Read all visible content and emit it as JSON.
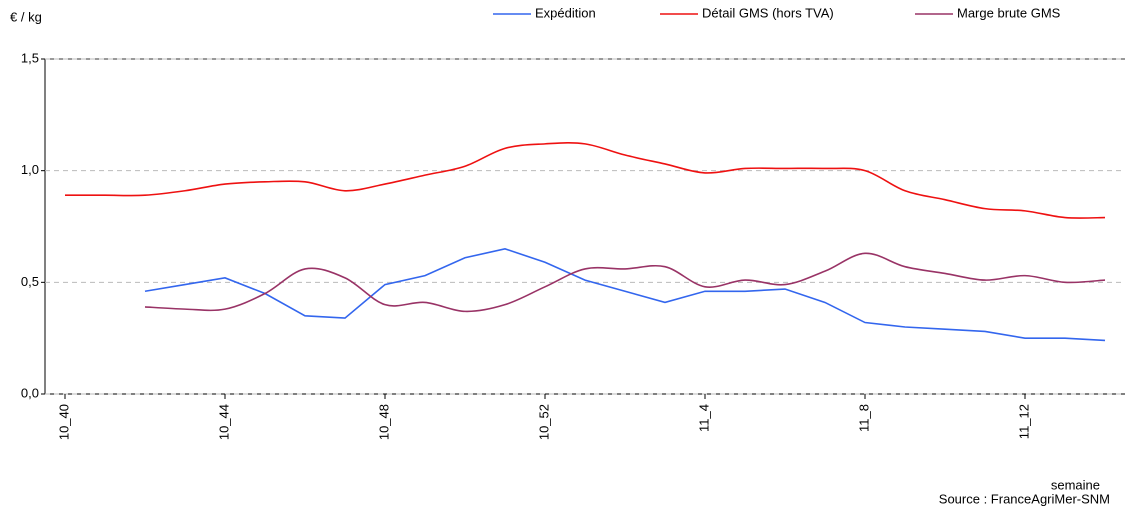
{
  "chart_data": {
    "type": "line",
    "y_label": "€ / kg",
    "x_label": "semaine",
    "source": "Source : FranceAgriMer-SNM",
    "categories": [
      "10_40",
      null,
      null,
      null,
      "10_44",
      null,
      null,
      null,
      "10_48",
      null,
      null,
      null,
      "10_52",
      null,
      null,
      null,
      "11_4",
      null,
      null,
      null,
      "11_8",
      null,
      null,
      null,
      "11_12",
      null,
      null
    ],
    "ylim": [
      0,
      1.5
    ],
    "yticks": [
      {
        "value": 0,
        "label": "0,0"
      },
      {
        "value": 0.5,
        "label": "0,5"
      },
      {
        "value": 1.0,
        "label": "1,0"
      },
      {
        "value": 1.5,
        "label": "1,5"
      }
    ],
    "grid": true,
    "legend": "top",
    "series": [
      {
        "name": "Expédition",
        "color": "#3366ee",
        "smooth": false,
        "values": [
          null,
          null,
          0.46,
          0.49,
          0.52,
          0.45,
          0.35,
          0.34,
          0.49,
          0.53,
          0.61,
          0.65,
          0.59,
          0.51,
          0.46,
          0.41,
          0.46,
          0.46,
          0.47,
          0.41,
          0.32,
          0.3,
          0.29,
          0.28,
          0.25,
          0.25,
          0.24
        ]
      },
      {
        "name": "Détail GMS (hors TVA)",
        "color": "#ee1111",
        "smooth": true,
        "values": [
          0.89,
          0.89,
          0.89,
          0.91,
          0.94,
          0.95,
          0.95,
          0.91,
          0.94,
          0.98,
          1.02,
          1.1,
          1.12,
          1.12,
          1.07,
          1.03,
          0.99,
          1.01,
          1.01,
          1.01,
          1.0,
          0.91,
          0.87,
          0.83,
          0.82,
          0.79,
          0.79
        ]
      },
      {
        "name": "Marge brute GMS",
        "color": "#993366",
        "smooth": true,
        "values": [
          null,
          null,
          0.39,
          0.38,
          0.38,
          0.45,
          0.56,
          0.52,
          0.4,
          0.41,
          0.37,
          0.4,
          0.48,
          0.56,
          0.56,
          0.57,
          0.48,
          0.51,
          0.49,
          0.55,
          0.63,
          0.57,
          0.54,
          0.51,
          0.53,
          0.5,
          0.51
        ]
      }
    ]
  }
}
